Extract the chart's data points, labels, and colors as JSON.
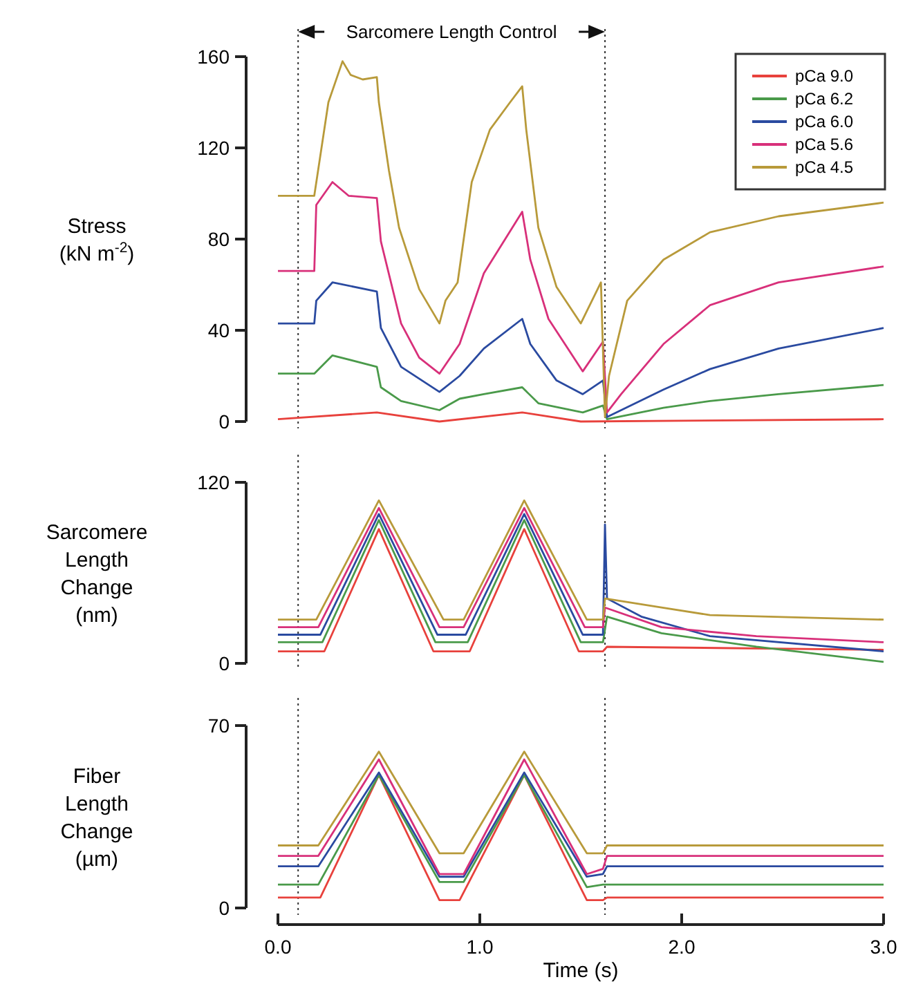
{
  "chart_data": [
    {
      "type": "line",
      "ylabel": "Stress (kN m$^{-2}$)",
      "xlim": [
        0,
        3
      ],
      "ylim": [
        0,
        160
      ],
      "yticks": [
        0,
        40,
        80,
        120,
        160
      ],
      "tick_labels": "y",
      "legend": "top right",
      "line_style": "solid",
      "annotations": [
        "Sarcomere Length Control"
      ],
      "ref_lines": [
        {
          "axis": "x",
          "value": 0.1,
          "color": "#333333",
          "line_style": "dotted"
        },
        {
          "axis": "x",
          "value": 1.62,
          "color": "#333333",
          "line_style": "dotted"
        }
      ],
      "series": [
        {
          "name": "pCa 9.0",
          "color": "#e8413c",
          "x": [
            0,
            0.49,
            0.8,
            1.21,
            1.5,
            3.0
          ],
          "values": [
            1,
            4,
            0,
            4,
            0,
            1
          ]
        },
        {
          "name": "pCa 6.2",
          "color": "#4a9a4a",
          "x": [
            0,
            0.18,
            0.27,
            0.49,
            0.51,
            0.61,
            0.8,
            0.9,
            1.02,
            1.21,
            1.29,
            1.51,
            1.61,
            1.63,
            1.91,
            2.14,
            2.48,
            3.0
          ],
          "values": [
            21,
            21,
            29,
            24,
            15,
            9,
            5,
            10,
            12,
            15,
            8,
            4,
            7,
            1,
            6,
            9,
            12,
            16
          ]
        },
        {
          "name": "pCa 6.0",
          "color": "#2a4aa0",
          "x": [
            0,
            0.18,
            0.19,
            0.27,
            0.49,
            0.51,
            0.61,
            0.8,
            0.9,
            1.02,
            1.21,
            1.25,
            1.38,
            1.51,
            1.61,
            1.63,
            1.91,
            2.14,
            2.48,
            3.0
          ],
          "values": [
            43,
            43,
            53,
            61,
            57,
            41,
            24,
            13,
            20,
            32,
            45,
            34,
            18,
            12,
            18,
            2,
            14,
            23,
            32,
            41
          ]
        },
        {
          "name": "pCa 5.6",
          "color": "#d8307a",
          "x": [
            0,
            0.18,
            0.19,
            0.27,
            0.35,
            0.49,
            0.51,
            0.61,
            0.7,
            0.8,
            0.9,
            1.02,
            1.21,
            1.25,
            1.34,
            1.51,
            1.61,
            1.63,
            1.7,
            1.91,
            2.14,
            2.48,
            3.0
          ],
          "values": [
            66,
            66,
            95,
            105,
            99,
            98,
            79,
            43,
            28,
            21,
            34,
            65,
            92,
            71,
            45,
            22,
            35,
            4,
            12,
            34,
            51,
            61,
            68
          ]
        },
        {
          "name": "pCa 4.5",
          "color": "#b89a3a",
          "x": [
            0,
            0.18,
            0.25,
            0.32,
            0.36,
            0.42,
            0.49,
            0.5,
            0.55,
            0.6,
            0.7,
            0.8,
            0.83,
            0.89,
            0.96,
            1.05,
            1.15,
            1.21,
            1.23,
            1.29,
            1.38,
            1.5,
            1.6,
            1.62,
            1.64,
            1.73,
            1.91,
            2.14,
            2.48,
            3.0
          ],
          "values": [
            99,
            99,
            140,
            158,
            152,
            150,
            151,
            140,
            110,
            85,
            58,
            43,
            53,
            61,
            105,
            128,
            140,
            147,
            128,
            85,
            59,
            43,
            61,
            2,
            20,
            53,
            71,
            83,
            90,
            96
          ]
        }
      ]
    },
    {
      "type": "line",
      "ylabel": "Sarcomere Length Change (nm)",
      "xlim": [
        0,
        3
      ],
      "ylim": [
        0,
        120
      ],
      "yticks": [
        0,
        120
      ],
      "tick_labels": "y",
      "line_style": "solid",
      "ref_lines": [
        {
          "axis": "x",
          "value": 0.1,
          "color": "#333333",
          "line_style": "dotted"
        },
        {
          "axis": "x",
          "value": 1.62,
          "color": "#333333",
          "line_style": "dotted"
        }
      ],
      "series": [
        {
          "color": "#e8413c",
          "x": [
            0,
            0.23,
            0.5,
            0.77,
            0.95,
            1.22,
            1.49,
            1.61,
            1.63,
            3.0
          ],
          "values": [
            8,
            8,
            89,
            8,
            8,
            89,
            8,
            8,
            11,
            9
          ]
        },
        {
          "color": "#4a9a4a",
          "x": [
            0,
            0.22,
            0.5,
            0.78,
            0.94,
            1.22,
            1.5,
            1.61,
            1.63,
            1.9,
            2.37,
            3.0
          ],
          "values": [
            14,
            14,
            95,
            14,
            14,
            95,
            14,
            14,
            31,
            20,
            11,
            1
          ]
        },
        {
          "color": "#2a4aa0",
          "x": [
            0,
            0.21,
            0.5,
            0.79,
            0.93,
            1.22,
            1.51,
            1.61,
            1.62,
            1.63,
            1.8,
            2.14,
            3.0
          ],
          "values": [
            19,
            19,
            99,
            19,
            19,
            99,
            19,
            19,
            92,
            43,
            31,
            18,
            8
          ]
        },
        {
          "color": "#d8307a",
          "x": [
            0,
            0.2,
            0.5,
            0.8,
            0.92,
            1.22,
            1.52,
            1.61,
            1.62,
            1.9,
            2.37,
            3.0
          ],
          "values": [
            24,
            24,
            103,
            24,
            24,
            103,
            24,
            24,
            37,
            24,
            18,
            14
          ]
        },
        {
          "color": "#b89a3a",
          "x": [
            0,
            0.19,
            0.5,
            0.82,
            0.92,
            1.22,
            1.53,
            1.61,
            1.62,
            1.9,
            2.14,
            3.0
          ],
          "values": [
            29,
            29,
            108,
            29,
            29,
            108,
            29,
            29,
            43,
            37,
            32,
            29
          ]
        }
      ]
    },
    {
      "type": "line",
      "ylabel": "Fiber Length Change (µm)",
      "xlabel": "Time (s)",
      "xlim": [
        0,
        3
      ],
      "xticks": [
        {
          "value": 0,
          "label": "0.0"
        },
        {
          "value": 1,
          "label": "1.0"
        },
        {
          "value": 2,
          "label": "2.0"
        },
        {
          "value": 3,
          "label": "3.0"
        }
      ],
      "ylim": [
        0,
        70
      ],
      "yticks": [
        0,
        70
      ],
      "line_style": "solid",
      "ref_lines": [
        {
          "axis": "x",
          "value": 0.1,
          "color": "#333333",
          "line_style": "dotted"
        },
        {
          "axis": "x",
          "value": 1.62,
          "color": "#333333",
          "line_style": "dotted"
        }
      ],
      "series": [
        {
          "color": "#e8413c",
          "x": [
            0,
            0.21,
            0.5,
            0.8,
            0.9,
            1.22,
            1.53,
            1.61,
            1.63,
            3.0
          ],
          "values": [
            4,
            4,
            51,
            3,
            3,
            51,
            3,
            3,
            4,
            4
          ]
        },
        {
          "color": "#4a9a4a",
          "x": [
            0,
            0.2,
            0.5,
            0.8,
            0.92,
            1.22,
            1.53,
            1.61,
            1.63,
            3.0
          ],
          "values": [
            9,
            9,
            51,
            10,
            10,
            51,
            8,
            9,
            9,
            9
          ]
        },
        {
          "color": "#2a4aa0",
          "x": [
            0,
            0.2,
            0.5,
            0.8,
            0.92,
            1.22,
            1.53,
            1.61,
            1.63,
            3.0
          ],
          "values": [
            16,
            16,
            52,
            12,
            12,
            52,
            12,
            13,
            16,
            16
          ]
        },
        {
          "color": "#d8307a",
          "x": [
            0,
            0.2,
            0.5,
            0.8,
            0.92,
            1.22,
            1.53,
            1.61,
            1.63,
            3.0
          ],
          "values": [
            20,
            20,
            57,
            13,
            13,
            57,
            13,
            15,
            20,
            20
          ]
        },
        {
          "color": "#b89a3a",
          "x": [
            0,
            0.2,
            0.5,
            0.8,
            0.92,
            1.22,
            1.53,
            1.61,
            1.63,
            3.0
          ],
          "values": [
            24,
            24,
            60,
            21,
            21,
            60,
            21,
            21,
            24,
            24
          ]
        }
      ]
    }
  ]
}
